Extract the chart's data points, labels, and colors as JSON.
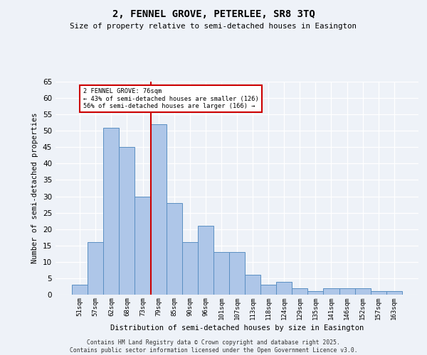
{
  "title": "2, FENNEL GROVE, PETERLEE, SR8 3TQ",
  "subtitle": "Size of property relative to semi-detached houses in Easington",
  "xlabel": "Distribution of semi-detached houses by size in Easington",
  "ylabel": "Number of semi-detached properties",
  "bar_labels": [
    "51sqm",
    "57sqm",
    "62sqm",
    "68sqm",
    "73sqm",
    "79sqm",
    "85sqm",
    "90sqm",
    "96sqm",
    "101sqm",
    "107sqm",
    "113sqm",
    "118sqm",
    "124sqm",
    "129sqm",
    "135sqm",
    "141sqm",
    "146sqm",
    "152sqm",
    "157sqm",
    "163sqm"
  ],
  "bar_values": [
    3,
    16,
    51,
    45,
    30,
    52,
    28,
    16,
    21,
    13,
    13,
    6,
    3,
    4,
    2,
    1,
    2,
    2,
    2,
    1,
    1
  ],
  "bar_color": "#aec6e8",
  "bar_edge_color": "#5a8fc2",
  "vline_x": 4.5,
  "vline_color": "#cc0000",
  "annotation_title": "2 FENNEL GROVE: 76sqm",
  "annotation_line1": "← 43% of semi-detached houses are smaller (126)",
  "annotation_line2": "56% of semi-detached houses are larger (166) →",
  "annotation_box_color": "#cc0000",
  "ylim": [
    0,
    65
  ],
  "yticks": [
    0,
    5,
    10,
    15,
    20,
    25,
    30,
    35,
    40,
    45,
    50,
    55,
    60,
    65
  ],
  "footer1": "Contains HM Land Registry data © Crown copyright and database right 2025.",
  "footer2": "Contains public sector information licensed under the Open Government Licence v3.0.",
  "bg_color": "#eef2f8",
  "plot_bg_color": "#eef2f8"
}
